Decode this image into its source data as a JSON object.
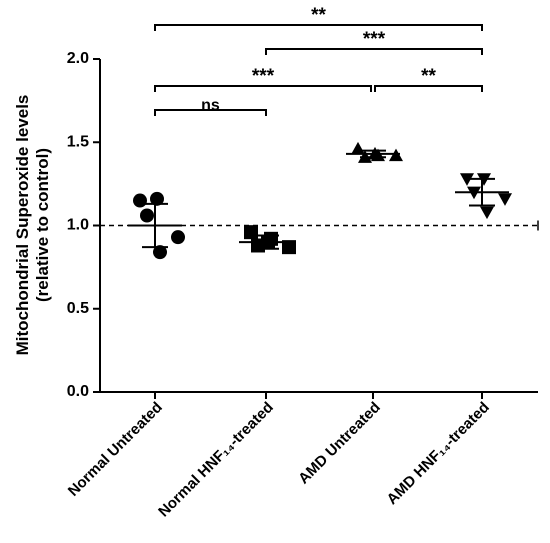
{
  "chart_data": {
    "type": "dot",
    "ylabel": [
      "Mitochondrial Superoxide levels",
      "(relative to control)"
    ],
    "categories": [
      "Normal Untreated",
      "Normal HNF₁₄-treated",
      "AMD Untreated",
      "AMD HNF₁₄-treated"
    ],
    "values": [
      [
        1.15,
        1.16,
        1.06,
        0.93,
        0.84
      ],
      [
        0.96,
        0.9,
        0.88,
        0.87,
        0.92
      ],
      [
        1.46,
        1.43,
        1.41,
        1.42,
        1.42
      ],
      [
        1.28,
        1.28,
        1.2,
        1.16,
        1.08
      ]
    ],
    "means": [
      1.0,
      0.9,
      1.43,
      1.2
    ],
    "sds": [
      0.13,
      0.04,
      0.02,
      0.08
    ],
    "markers": [
      "circle",
      "square",
      "triangle-up",
      "triangle-down"
    ],
    "color": "#000000",
    "reference_line": 1,
    "ylim": [
      0,
      2
    ],
    "yticks": [
      {
        "value": 0,
        "label": "0.0"
      },
      {
        "value": 0.5,
        "label": "0.5"
      },
      {
        "value": 1,
        "label": "1.0"
      },
      {
        "value": 1.5,
        "label": "1.5"
      },
      {
        "value": 2,
        "label": "2.0"
      }
    ],
    "annotations": [
      {
        "text": "ns",
        "from": 0,
        "to": 1
      },
      {
        "text": "***",
        "from": 0,
        "to": 2
      },
      {
        "text": "**",
        "from": 2,
        "to": 3
      },
      {
        "text": "***",
        "from": 1,
        "to": 3
      },
      {
        "text": "**",
        "from": 0,
        "to": 3
      }
    ]
  }
}
